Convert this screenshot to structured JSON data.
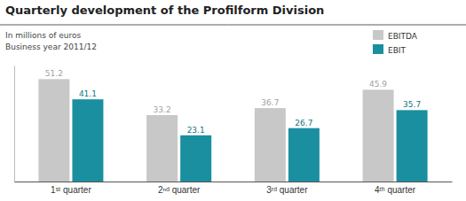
{
  "chart_data": {
    "type": "bar",
    "title": "Quarterly development of the Profilform Division",
    "subtitle": [
      "In millions of euros",
      "Business year 2011/12"
    ],
    "categories": [
      "1ˢᵗ quarter",
      "2ⁿᵈ quarter",
      "3ʳᵈ quarter",
      "4ᵗʰ quarter"
    ],
    "series": [
      {
        "name": "EBITDA",
        "color": "#c8c8c8",
        "values": [
          51.2,
          33.2,
          36.7,
          45.9
        ]
      },
      {
        "name": "EBIT",
        "color": "#1a8fa0",
        "values": [
          41.1,
          23.1,
          26.7,
          35.7
        ]
      }
    ],
    "ylim": [
      0,
      58
    ],
    "tick_labels": "x",
    "data_labels": true,
    "grid": false,
    "legend": "top-right"
  }
}
